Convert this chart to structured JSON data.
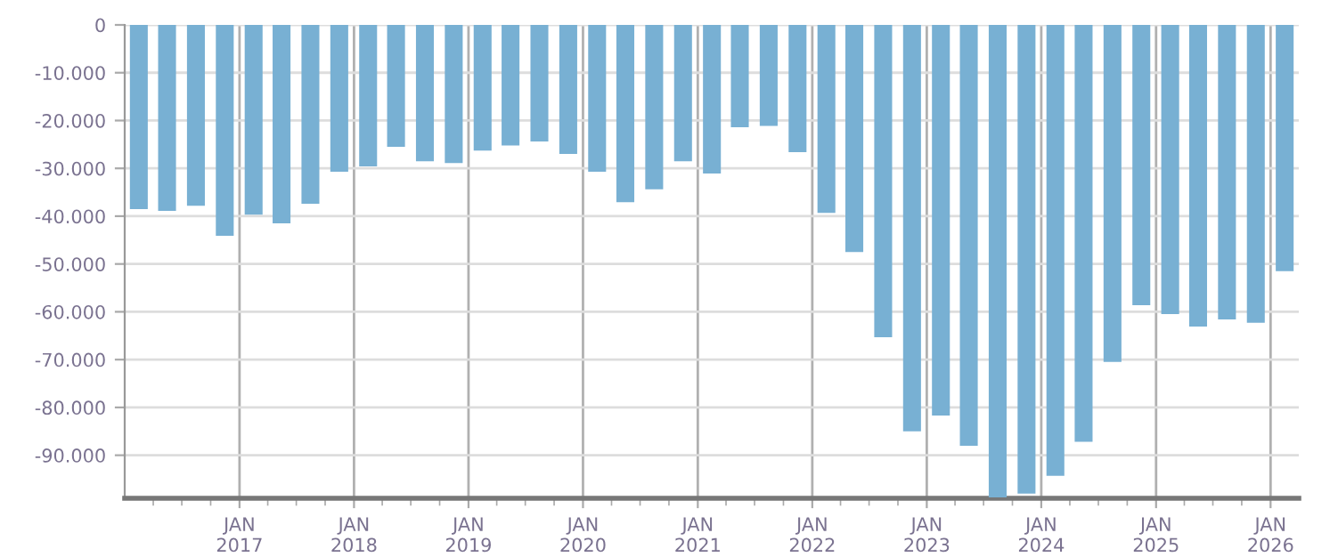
{
  "chart_data": {
    "type": "bar",
    "color": "#78b0d3",
    "grid": true,
    "x": [
      "2016-02-15",
      "2016-05-15",
      "2016-08-15",
      "2016-11-15",
      "2017-02-15",
      "2017-05-15",
      "2017-08-15",
      "2017-11-15",
      "2018-02-15",
      "2018-05-15",
      "2018-08-15",
      "2018-11-15",
      "2019-02-15",
      "2019-05-15",
      "2019-08-15",
      "2019-11-15",
      "2020-02-15",
      "2020-05-15",
      "2020-08-15",
      "2020-11-15",
      "2021-02-15",
      "2021-05-15",
      "2021-08-15",
      "2021-11-15",
      "2022-02-15",
      "2022-05-15",
      "2022-08-15",
      "2022-11-15",
      "2023-02-15",
      "2023-05-15",
      "2023-08-15",
      "2023-11-15",
      "2024-02-15",
      "2024-05-15",
      "2024-08-15",
      "2024-11-15",
      "2025-02-15",
      "2025-05-15",
      "2025-08-15",
      "2025-11-15",
      "2026-02-15"
    ],
    "values": [
      -38500,
      -38900,
      -37800,
      -44100,
      -39700,
      -41500,
      -37400,
      -30700,
      -29600,
      -25500,
      -28500,
      -28900,
      -26300,
      -25200,
      -24400,
      -27000,
      -30700,
      -37100,
      -34400,
      -28500,
      -31100,
      -21400,
      -21100,
      -26600,
      -39300,
      -47500,
      -65300,
      -85000,
      -81700,
      -88000,
      -98800,
      -98000,
      -94300,
      -87200,
      -70500,
      -58600,
      -60500,
      -63100,
      -61600,
      -62300,
      -51500
    ],
    "ylim": [
      -99000,
      0
    ],
    "yticks": [
      0,
      {
        "value": -10000,
        "label": "-10.000"
      },
      {
        "value": -20000,
        "label": "-20.000"
      },
      {
        "value": -30000,
        "label": "-30.000"
      },
      {
        "value": -40000,
        "label": "-40.000"
      },
      {
        "value": -50000,
        "label": "-50.000"
      },
      {
        "value": -60000,
        "label": "-60.000"
      },
      {
        "value": -70000,
        "label": "-70.000"
      },
      {
        "value": -80000,
        "label": "-80.000"
      },
      {
        "value": -90000,
        "label": "-90.000"
      }
    ],
    "xlim": [
      "2016-01-01",
      "2026-04-01"
    ],
    "xticks": [
      {
        "value": "2016-04-01",
        "label": null
      },
      {
        "value": "2016-07-01",
        "label": null
      },
      {
        "value": "2016-10-01",
        "label": null
      },
      {
        "value": "2017-01-01",
        "label": "JAN\n2017"
      },
      {
        "value": "2017-04-01",
        "label": null
      },
      {
        "value": "2017-07-01",
        "label": null
      },
      {
        "value": "2017-10-01",
        "label": null
      },
      {
        "value": "2018-01-01",
        "label": "JAN\n2018"
      },
      {
        "value": "2018-04-01",
        "label": null
      },
      {
        "value": "2018-07-01",
        "label": null
      },
      {
        "value": "2018-10-01",
        "label": null
      },
      {
        "value": "2019-01-01",
        "label": "JAN\n2019"
      },
      {
        "value": "2019-04-01",
        "label": null
      },
      {
        "value": "2019-07-01",
        "label": null
      },
      {
        "value": "2019-10-01",
        "label": null
      },
      {
        "value": "2020-01-01",
        "label": "JAN\n2020"
      },
      {
        "value": "2020-04-01",
        "label": null
      },
      {
        "value": "2020-07-01",
        "label": null
      },
      {
        "value": "2020-10-01",
        "label": null
      },
      {
        "value": "2021-01-01",
        "label": "JAN\n2021"
      },
      {
        "value": "2021-04-01",
        "label": null
      },
      {
        "value": "2021-07-01",
        "label": null
      },
      {
        "value": "2021-10-01",
        "label": null
      },
      {
        "value": "2022-01-01",
        "label": "JAN\n2022"
      },
      {
        "value": "2022-04-01",
        "label": null
      },
      {
        "value": "2022-07-01",
        "label": null
      },
      {
        "value": "2022-10-01",
        "label": null
      },
      {
        "value": "2023-01-01",
        "label": "JAN\n2023"
      },
      {
        "value": "2023-04-01",
        "label": null
      },
      {
        "value": "2023-07-01",
        "label": null
      },
      {
        "value": "2023-10-01",
        "label": null
      },
      {
        "value": "2024-01-01",
        "label": "JAN\n2024"
      },
      {
        "value": "2024-04-01",
        "label": null
      },
      {
        "value": "2024-07-01",
        "label": null
      },
      {
        "value": "2024-10-01",
        "label": null
      },
      {
        "value": "2025-01-01",
        "label": "JAN\n2025"
      },
      {
        "value": "2025-04-01",
        "label": null
      },
      {
        "value": "2025-07-01",
        "label": null
      },
      {
        "value": "2025-10-01",
        "label": null
      },
      {
        "value": "2026-01-01",
        "label": "JAN\n2026"
      }
    ]
  }
}
